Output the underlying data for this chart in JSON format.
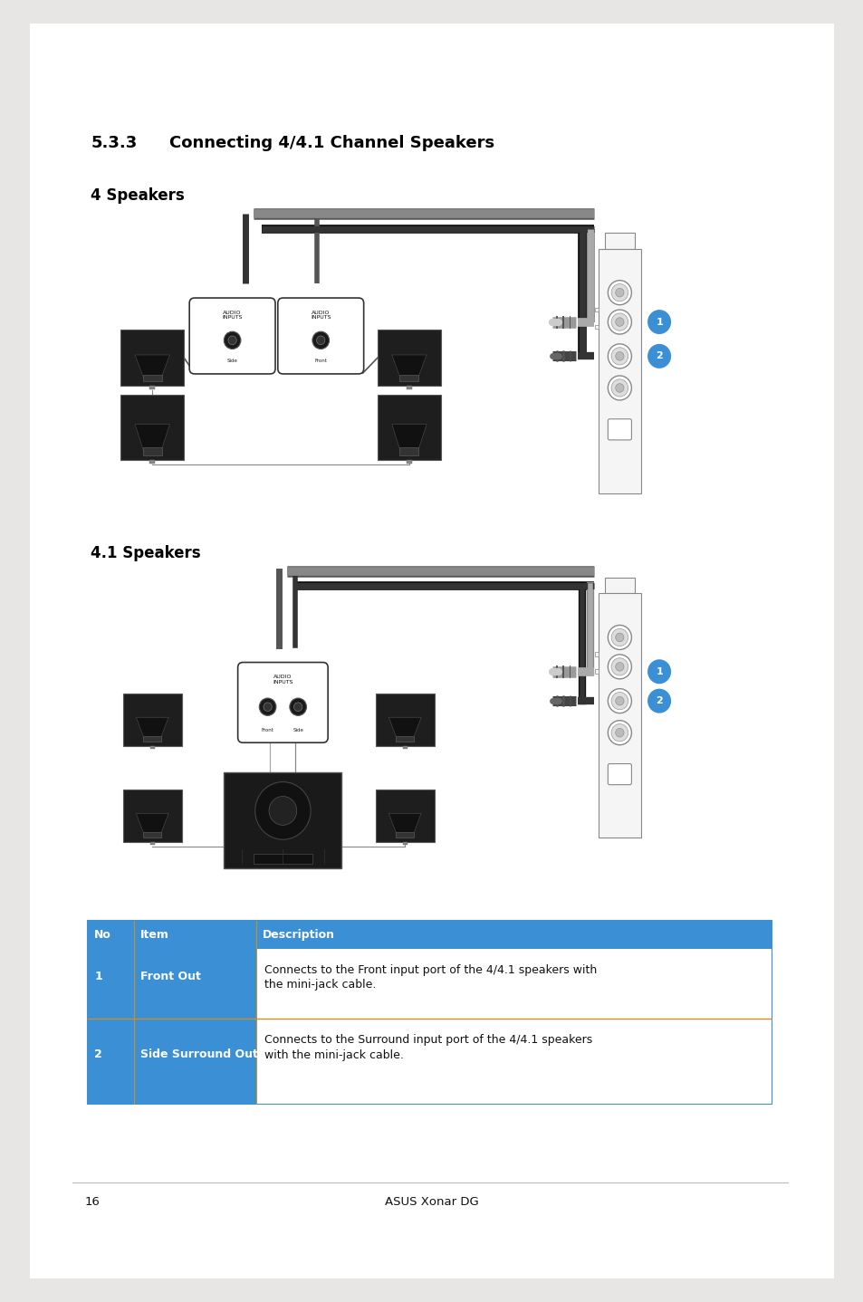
{
  "page_bg": "#e8e6e4",
  "content_bg": "#ffffff",
  "title_num": "5.3.3",
  "title_text": "Connecting 4/4.1 Channel Speakers",
  "section1_label": "4 Speakers",
  "section2_label": "4.1 Speakers",
  "table_header_bg": "#3b8fd4",
  "table_header_color": "#ffffff",
  "table_cell_bg_blue": "#3b8fd4",
  "table_cell_bg_white": "#ffffff",
  "table_border_color": "#c8922a",
  "table_outer_border": "#3b8fd4",
  "col_headers": [
    "No",
    "Item",
    "Description"
  ],
  "row1_no": "1",
  "row1_item": "Front Out",
  "row1_desc1": "Connects to the Front input port of the 4/4.1 speakers with",
  "row1_desc2": "the mini-jack cable.",
  "row2_no": "2",
  "row2_item": "Side Surround Out",
  "row2_desc1": "Connects to the Surround input port of the 4/4.1 speakers",
  "row2_desc2": "with the mini-jack cable.",
  "footer_text": "ASUS Xonar DG",
  "page_number": "16",
  "badge_color": "#3b8fd4",
  "line_color_dark": "#1a1a1a",
  "line_color_gray": "#888888",
  "speaker_fill": "#2a2a2a",
  "speaker_edge": "#555555",
  "card_fill": "#f5f5f5",
  "card_edge": "#888888"
}
